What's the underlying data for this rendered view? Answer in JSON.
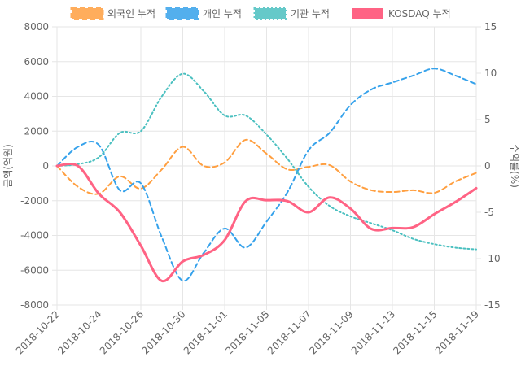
{
  "chart_data": {
    "type": "line",
    "x": [
      "2018-10-22",
      "2018-10-23",
      "2018-10-24",
      "2018-10-25",
      "2018-10-26",
      "2018-10-29",
      "2018-10-30",
      "2018-10-31",
      "2018-11-01",
      "2018-11-02",
      "2018-11-05",
      "2018-11-06",
      "2018-11-07",
      "2018-11-08",
      "2018-11-09",
      "2018-11-12",
      "2018-11-13",
      "2018-11-14",
      "2018-11-15",
      "2018-11-16",
      "2018-11-19"
    ],
    "x_tick_labels": [
      "2018-10-22",
      "2018-10-24",
      "2018-10-26",
      "2018-10-30",
      "2018-11-01",
      "2018-11-05",
      "2018-11-07",
      "2018-11-09",
      "2018-11-13",
      "2018-11-15",
      "2018-11-19"
    ],
    "y_left": {
      "label": "금액(억원)",
      "lim": [
        -8000,
        8000
      ],
      "ticks": [
        8000,
        6000,
        4000,
        2000,
        0,
        -2000,
        -4000,
        -6000,
        -8000
      ]
    },
    "y_right": {
      "label": "수익률(%)",
      "lim": [
        -15,
        15
      ],
      "ticks": [
        15,
        10,
        5,
        0,
        -5,
        -10,
        -15
      ]
    },
    "legend_position": "top",
    "series": [
      {
        "name": "외국인 누적",
        "axis": "left",
        "style": "dashed",
        "color": "#ff9f40",
        "values": [
          0,
          -1200,
          -1600,
          -600,
          -1300,
          -200,
          1100,
          0,
          200,
          1500,
          700,
          -200,
          -50,
          50,
          -900,
          -1400,
          -1500,
          -1400,
          -1550,
          -900,
          -400
        ]
      },
      {
        "name": "개인 누적",
        "axis": "left",
        "style": "dashed",
        "color": "#36a2eb",
        "values": [
          0,
          1100,
          1200,
          -1400,
          -1000,
          -4100,
          -6600,
          -5000,
          -3600,
          -4700,
          -3200,
          -1500,
          900,
          1900,
          3500,
          4400,
          4800,
          5200,
          5600,
          5200,
          4700
        ]
      },
      {
        "name": "기관 누적",
        "axis": "left",
        "style": "dotted",
        "color": "#4bc0c0",
        "values": [
          0,
          100,
          500,
          1900,
          2000,
          4000,
          5300,
          4300,
          2900,
          2900,
          1800,
          400,
          -1200,
          -2300,
          -2900,
          -3300,
          -3700,
          -4200,
          -4500,
          -4700,
          -4800
        ]
      },
      {
        "name": "KOSDAQ 누적",
        "axis": "right",
        "style": "solid",
        "color": "#ff6384",
        "values": [
          0,
          0,
          -3,
          -5,
          -8.6,
          -12.4,
          -10.3,
          -9.6,
          -8,
          -3.8,
          -3.7,
          -3.8,
          -5,
          -3.4,
          -4.6,
          -6.8,
          -6.7,
          -6.6,
          -5.2,
          -3.9,
          -2.4
        ]
      }
    ]
  }
}
